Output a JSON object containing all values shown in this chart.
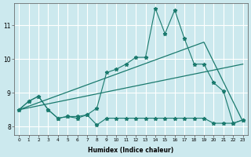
{
  "xlabel": "Humidex (Indice chaleur)",
  "background_color": "#cce9ee",
  "grid_color": "#ffffff",
  "line_color": "#1a7a6e",
  "xlim": [
    -0.5,
    23.5
  ],
  "ylim": [
    7.75,
    11.65
  ],
  "yticks": [
    8,
    9,
    10,
    11
  ],
  "xticks": [
    0,
    1,
    2,
    3,
    4,
    5,
    6,
    7,
    8,
    9,
    10,
    11,
    12,
    13,
    14,
    15,
    16,
    17,
    18,
    19,
    20,
    21,
    22,
    23
  ],
  "zigzag_x": [
    0,
    1,
    2,
    3,
    4,
    5,
    6,
    7,
    8,
    9,
    10,
    11,
    12,
    13,
    14,
    15,
    16,
    17,
    18,
    19,
    20,
    21,
    22,
    23
  ],
  "zigzag_y": [
    8.5,
    8.75,
    8.9,
    8.5,
    8.25,
    8.3,
    8.3,
    8.35,
    8.55,
    9.6,
    9.7,
    9.85,
    10.05,
    10.05,
    11.5,
    10.75,
    11.45,
    10.6,
    9.85,
    9.85,
    9.3,
    9.05,
    8.1,
    8.2
  ],
  "upper_trend_x": [
    0,
    19,
    23
  ],
  "upper_trend_y": [
    8.5,
    10.5,
    8.15
  ],
  "lower_trend_x": [
    0,
    23
  ],
  "lower_trend_y": [
    8.5,
    9.85
  ],
  "flat_x": [
    0,
    1,
    2,
    3,
    4,
    5,
    6,
    7,
    8,
    9,
    10,
    11,
    12,
    13,
    14,
    15,
    16,
    17,
    18,
    19,
    20,
    21,
    22,
    23
  ],
  "flat_y": [
    8.5,
    8.75,
    8.9,
    8.5,
    8.25,
    8.3,
    8.25,
    8.35,
    8.05,
    8.25,
    8.25,
    8.25,
    8.25,
    8.25,
    8.25,
    8.25,
    8.25,
    8.25,
    8.25,
    8.25,
    8.1,
    8.1,
    8.1,
    8.2
  ]
}
